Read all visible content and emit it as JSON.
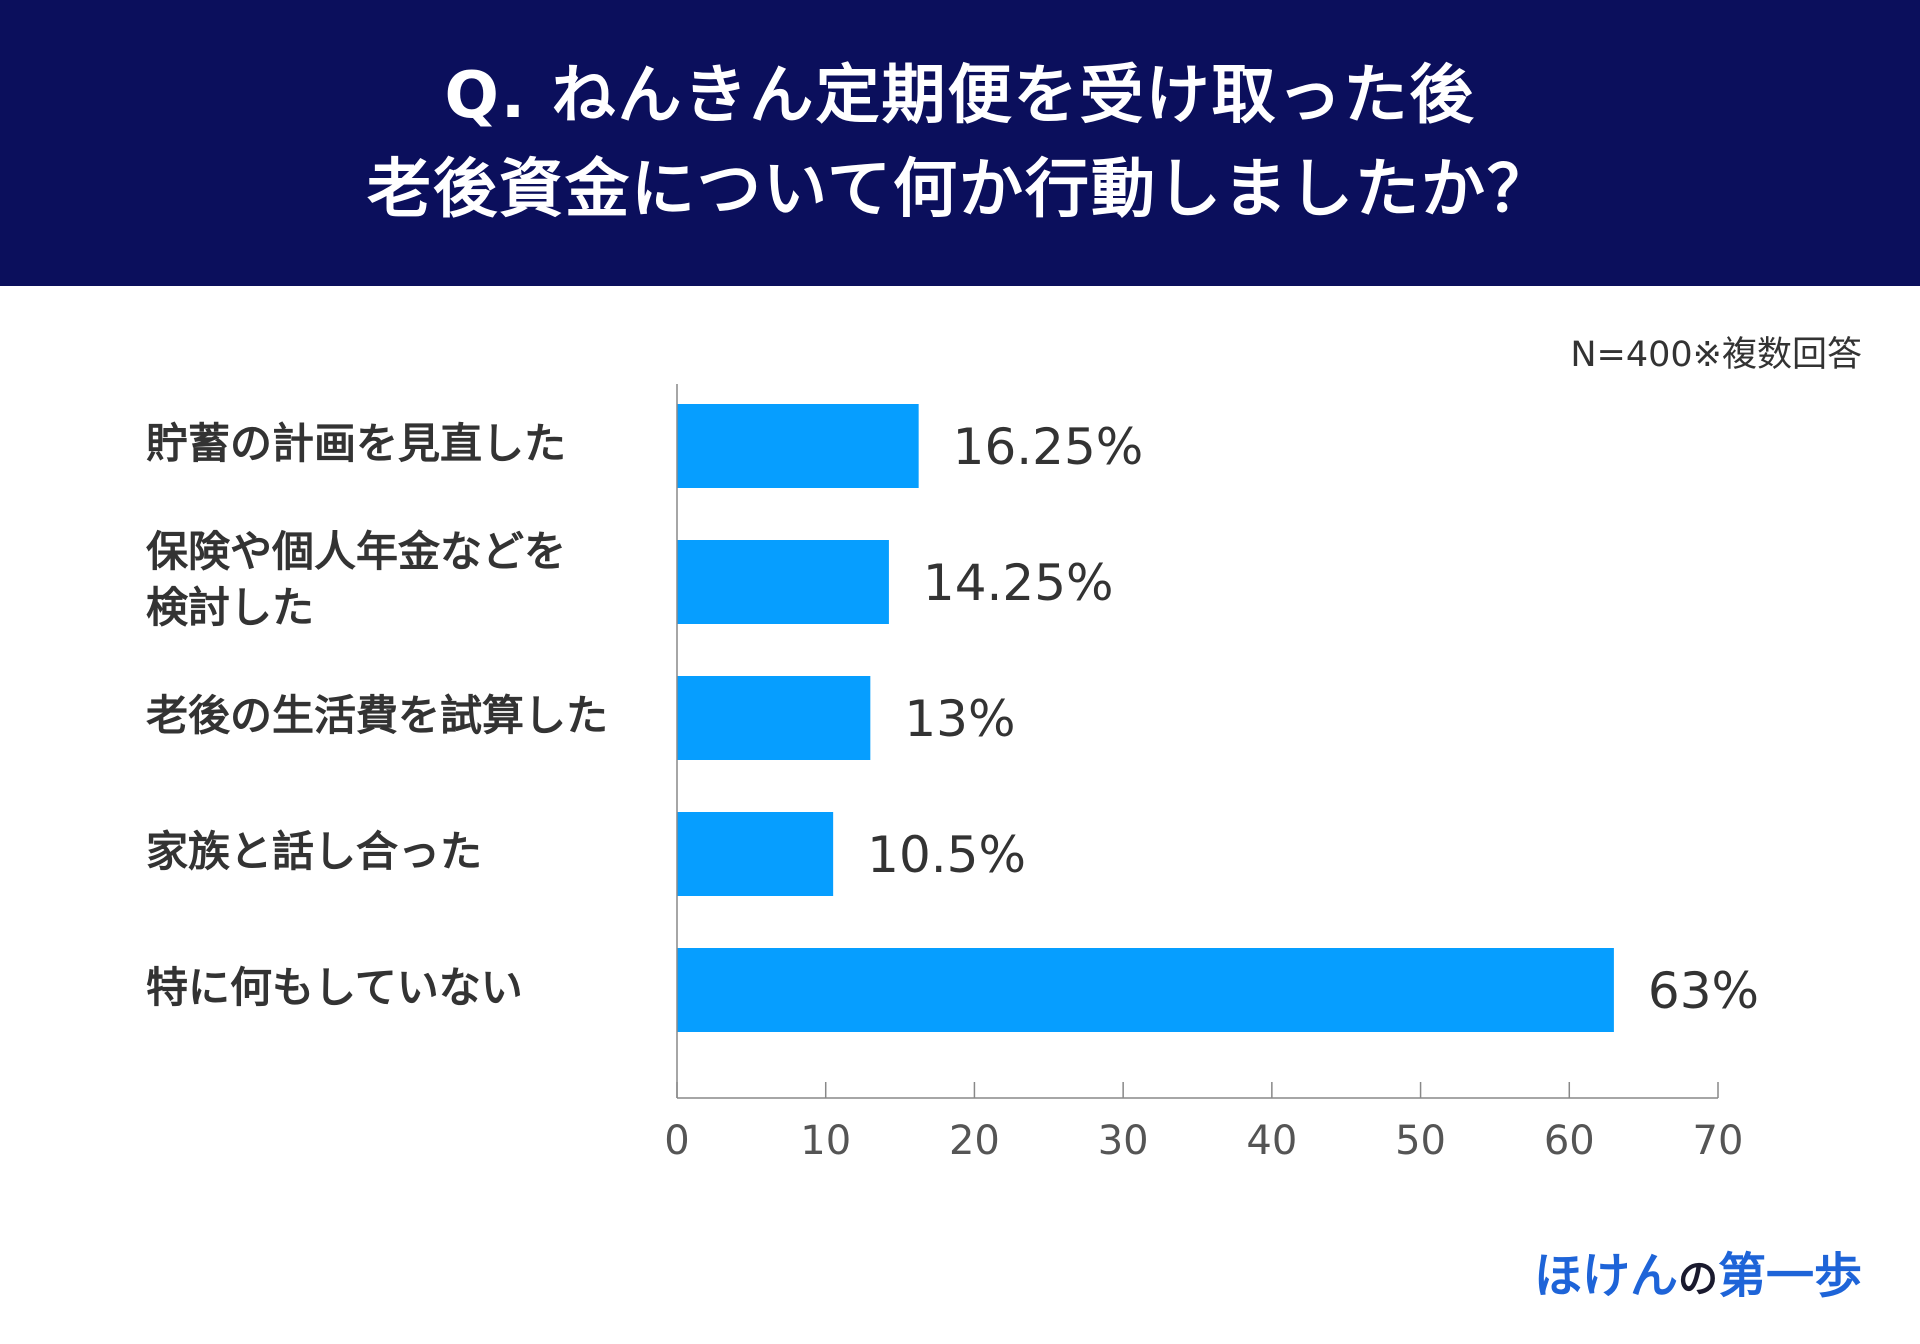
{
  "title": {
    "line1": "Q. ねんきん定期便を受け取った後",
    "line2": "老後資金について何か行動しましたか？"
  },
  "note": "N=400※複数回答",
  "brand": {
    "part1": "ほけん",
    "part2": "の",
    "part3": "第一歩"
  },
  "colors": {
    "header_bg": "#0b0f5c",
    "bar": "#069eff",
    "brand": "#1e64d8"
  },
  "chart_data": {
    "type": "bar",
    "orientation": "horizontal",
    "categories": [
      "貯蓄の計画を見直した",
      "保険や個人年金などを\n検討した",
      "老後の生活費を試算した",
      "家族と話し合った",
      "特に何もしていない"
    ],
    "values": [
      16.25,
      14.25,
      13,
      10.5,
      63
    ],
    "value_labels": [
      "16.25%",
      "14.25%",
      "13%",
      "10.5%",
      "63%"
    ],
    "xlim": [
      0,
      70
    ],
    "x_ticks": [
      "0",
      "10",
      "20",
      "30",
      "40",
      "50",
      "60",
      "70"
    ],
    "grid": false
  }
}
